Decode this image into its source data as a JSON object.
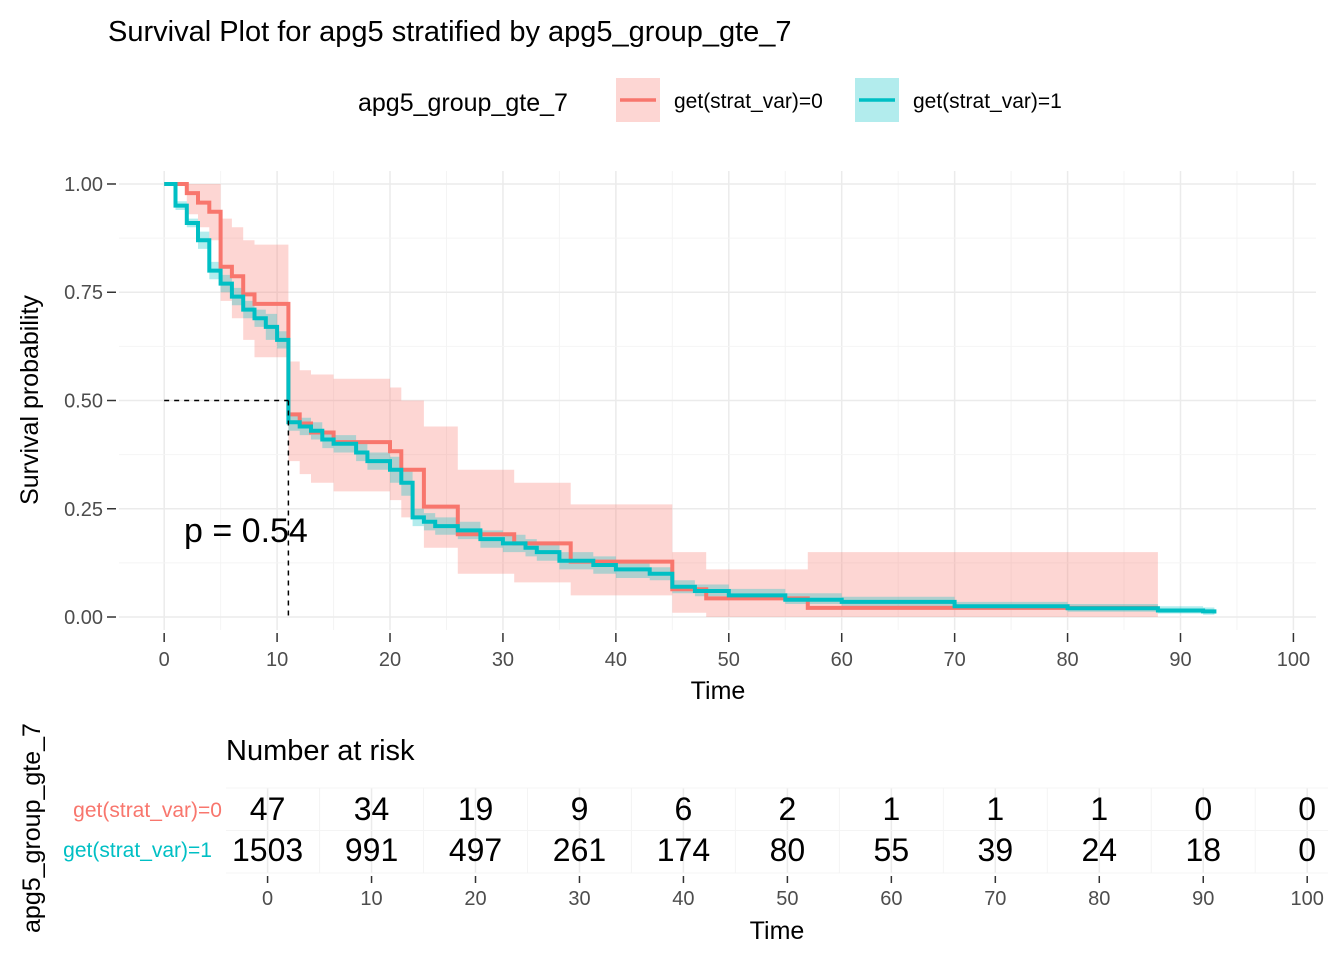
{
  "chart_data": {
    "type": "line",
    "subtype": "kaplan-meier-step",
    "title": "Survival Plot for apg5 stratified by apg5_group_gte_7",
    "xlabel": "Time",
    "ylabel": "Survival probability",
    "xlim": [
      -4,
      102
    ],
    "ylim": [
      -0.03,
      1.03
    ],
    "x_ticks": [
      0,
      10,
      20,
      30,
      40,
      50,
      60,
      70,
      80,
      90,
      100
    ],
    "y_ticks": [
      0.0,
      0.25,
      0.5,
      0.75,
      1.0
    ],
    "y_tick_labels": [
      "0.00",
      "0.25",
      "0.50",
      "0.75",
      "1.00"
    ],
    "grid": true,
    "legend": {
      "title": "apg5_group_gte_7",
      "position": "top"
    },
    "annotation": "p = 0.54",
    "median_line": {
      "x": 11,
      "y": 0.5
    },
    "colors": {
      "group0": "#F8766D",
      "group1": "#00BFC4"
    },
    "series": [
      {
        "name": "get(strat_var)=0",
        "color": "#F8766D",
        "steps": [
          [
            0,
            1.0
          ],
          [
            2,
            0.979
          ],
          [
            3,
            0.957
          ],
          [
            4,
            0.936
          ],
          [
            5,
            0.809
          ],
          [
            6,
            0.787
          ],
          [
            7,
            0.745
          ],
          [
            8,
            0.723
          ],
          [
            11,
            0.702
          ],
          [
            11,
            0.468
          ],
          [
            12,
            0.447
          ],
          [
            13,
            0.426
          ],
          [
            15,
            0.404
          ],
          [
            20,
            0.383
          ],
          [
            21,
            0.34
          ],
          [
            23,
            0.255
          ],
          [
            26,
            0.191
          ],
          [
            31,
            0.17
          ],
          [
            36,
            0.128
          ],
          [
            45,
            0.064
          ],
          [
            48,
            0.043
          ],
          [
            57,
            0.021
          ],
          [
            88,
            0.021
          ]
        ],
        "lower": [
          [
            0,
            1.0
          ],
          [
            2,
            0.93
          ],
          [
            3,
            0.9
          ],
          [
            4,
            0.87
          ],
          [
            5,
            0.73
          ],
          [
            6,
            0.69
          ],
          [
            7,
            0.64
          ],
          [
            8,
            0.6
          ],
          [
            11,
            0.58
          ],
          [
            11,
            0.36
          ],
          [
            12,
            0.33
          ],
          [
            13,
            0.31
          ],
          [
            15,
            0.29
          ],
          [
            20,
            0.27
          ],
          [
            21,
            0.23
          ],
          [
            23,
            0.16
          ],
          [
            26,
            0.1
          ],
          [
            31,
            0.08
          ],
          [
            36,
            0.05
          ],
          [
            45,
            0.01
          ],
          [
            48,
            0.0
          ],
          [
            88,
            0.0
          ]
        ],
        "upper": [
          [
            0,
            1.0
          ],
          [
            2,
            1.0
          ],
          [
            3,
            1.0
          ],
          [
            4,
            1.0
          ],
          [
            5,
            0.92
          ],
          [
            6,
            0.9
          ],
          [
            7,
            0.87
          ],
          [
            8,
            0.86
          ],
          [
            11,
            0.86
          ],
          [
            11,
            0.59
          ],
          [
            12,
            0.57
          ],
          [
            13,
            0.56
          ],
          [
            15,
            0.55
          ],
          [
            20,
            0.53
          ],
          [
            21,
            0.5
          ],
          [
            23,
            0.44
          ],
          [
            26,
            0.34
          ],
          [
            31,
            0.31
          ],
          [
            36,
            0.26
          ],
          [
            45,
            0.15
          ],
          [
            48,
            0.11
          ],
          [
            57,
            0.15
          ],
          [
            88,
            0.15
          ]
        ]
      },
      {
        "name": "get(strat_var)=1",
        "color": "#00BFC4",
        "steps": [
          [
            0,
            1.0
          ],
          [
            1,
            0.95
          ],
          [
            2,
            0.91
          ],
          [
            3,
            0.87
          ],
          [
            4,
            0.8
          ],
          [
            5,
            0.77
          ],
          [
            6,
            0.74
          ],
          [
            7,
            0.71
          ],
          [
            8,
            0.69
          ],
          [
            9,
            0.67
          ],
          [
            10,
            0.64
          ],
          [
            11,
            0.45
          ],
          [
            12,
            0.44
          ],
          [
            13,
            0.43
          ],
          [
            14,
            0.41
          ],
          [
            15,
            0.4
          ],
          [
            17,
            0.38
          ],
          [
            18,
            0.36
          ],
          [
            20,
            0.34
          ],
          [
            21,
            0.31
          ],
          [
            22,
            0.23
          ],
          [
            23,
            0.22
          ],
          [
            24,
            0.21
          ],
          [
            26,
            0.2
          ],
          [
            28,
            0.18
          ],
          [
            30,
            0.17
          ],
          [
            32,
            0.16
          ],
          [
            33,
            0.15
          ],
          [
            35,
            0.13
          ],
          [
            38,
            0.12
          ],
          [
            40,
            0.11
          ],
          [
            43,
            0.1
          ],
          [
            45,
            0.07
          ],
          [
            47,
            0.06
          ],
          [
            50,
            0.05
          ],
          [
            55,
            0.04
          ],
          [
            60,
            0.035
          ],
          [
            70,
            0.025
          ],
          [
            80,
            0.02
          ],
          [
            88,
            0.015
          ],
          [
            92,
            0.013
          ],
          [
            93,
            0.008
          ]
        ],
        "lower": [
          [
            0,
            1.0
          ],
          [
            1,
            0.94
          ],
          [
            2,
            0.9
          ],
          [
            3,
            0.85
          ],
          [
            4,
            0.78
          ],
          [
            5,
            0.75
          ],
          [
            6,
            0.72
          ],
          [
            7,
            0.69
          ],
          [
            8,
            0.67
          ],
          [
            9,
            0.64
          ],
          [
            10,
            0.62
          ],
          [
            11,
            0.43
          ],
          [
            12,
            0.42
          ],
          [
            13,
            0.41
          ],
          [
            14,
            0.39
          ],
          [
            15,
            0.38
          ],
          [
            17,
            0.36
          ],
          [
            18,
            0.34
          ],
          [
            20,
            0.31
          ],
          [
            21,
            0.28
          ],
          [
            22,
            0.21
          ],
          [
            23,
            0.2
          ],
          [
            24,
            0.19
          ],
          [
            26,
            0.18
          ],
          [
            28,
            0.16
          ],
          [
            30,
            0.15
          ],
          [
            32,
            0.14
          ],
          [
            33,
            0.13
          ],
          [
            35,
            0.11
          ],
          [
            38,
            0.1
          ],
          [
            40,
            0.09
          ],
          [
            43,
            0.085
          ],
          [
            45,
            0.055
          ],
          [
            47,
            0.048
          ],
          [
            50,
            0.04
          ],
          [
            55,
            0.03
          ],
          [
            60,
            0.025
          ],
          [
            70,
            0.017
          ],
          [
            80,
            0.012
          ],
          [
            88,
            0.008
          ],
          [
            92,
            0.005
          ],
          [
            93,
            0.003
          ]
        ],
        "upper": [
          [
            0,
            1.0
          ],
          [
            1,
            0.96
          ],
          [
            2,
            0.92
          ],
          [
            3,
            0.89
          ],
          [
            4,
            0.82
          ],
          [
            5,
            0.79
          ],
          [
            6,
            0.76
          ],
          [
            7,
            0.73
          ],
          [
            8,
            0.71
          ],
          [
            9,
            0.7
          ],
          [
            10,
            0.66
          ],
          [
            11,
            0.47
          ],
          [
            12,
            0.46
          ],
          [
            13,
            0.45
          ],
          [
            14,
            0.43
          ],
          [
            15,
            0.42
          ],
          [
            17,
            0.4
          ],
          [
            18,
            0.38
          ],
          [
            20,
            0.37
          ],
          [
            21,
            0.34
          ],
          [
            22,
            0.25
          ],
          [
            23,
            0.24
          ],
          [
            24,
            0.23
          ],
          [
            26,
            0.22
          ],
          [
            28,
            0.2
          ],
          [
            30,
            0.19
          ],
          [
            32,
            0.18
          ],
          [
            33,
            0.17
          ],
          [
            35,
            0.15
          ],
          [
            38,
            0.14
          ],
          [
            40,
            0.13
          ],
          [
            43,
            0.115
          ],
          [
            45,
            0.085
          ],
          [
            47,
            0.075
          ],
          [
            50,
            0.065
          ],
          [
            55,
            0.055
          ],
          [
            60,
            0.047
          ],
          [
            70,
            0.035
          ],
          [
            80,
            0.03
          ],
          [
            88,
            0.025
          ],
          [
            92,
            0.022
          ],
          [
            93,
            0.015
          ]
        ]
      }
    ],
    "risk_table": {
      "title": "Number at risk",
      "ylabel": "apg5_group_gte_7",
      "xlabel": "Time",
      "times": [
        0,
        10,
        20,
        30,
        40,
        50,
        60,
        70,
        80,
        90,
        100
      ],
      "rows": [
        {
          "name": "get(strat_var)=0",
          "color": "#F8766D",
          "values": [
            47,
            34,
            19,
            9,
            6,
            2,
            1,
            1,
            1,
            0,
            0
          ]
        },
        {
          "name": "get(strat_var)=1",
          "color": "#00BFC4",
          "values": [
            1503,
            991,
            497,
            261,
            174,
            80,
            55,
            39,
            24,
            18,
            0
          ]
        }
      ]
    }
  }
}
